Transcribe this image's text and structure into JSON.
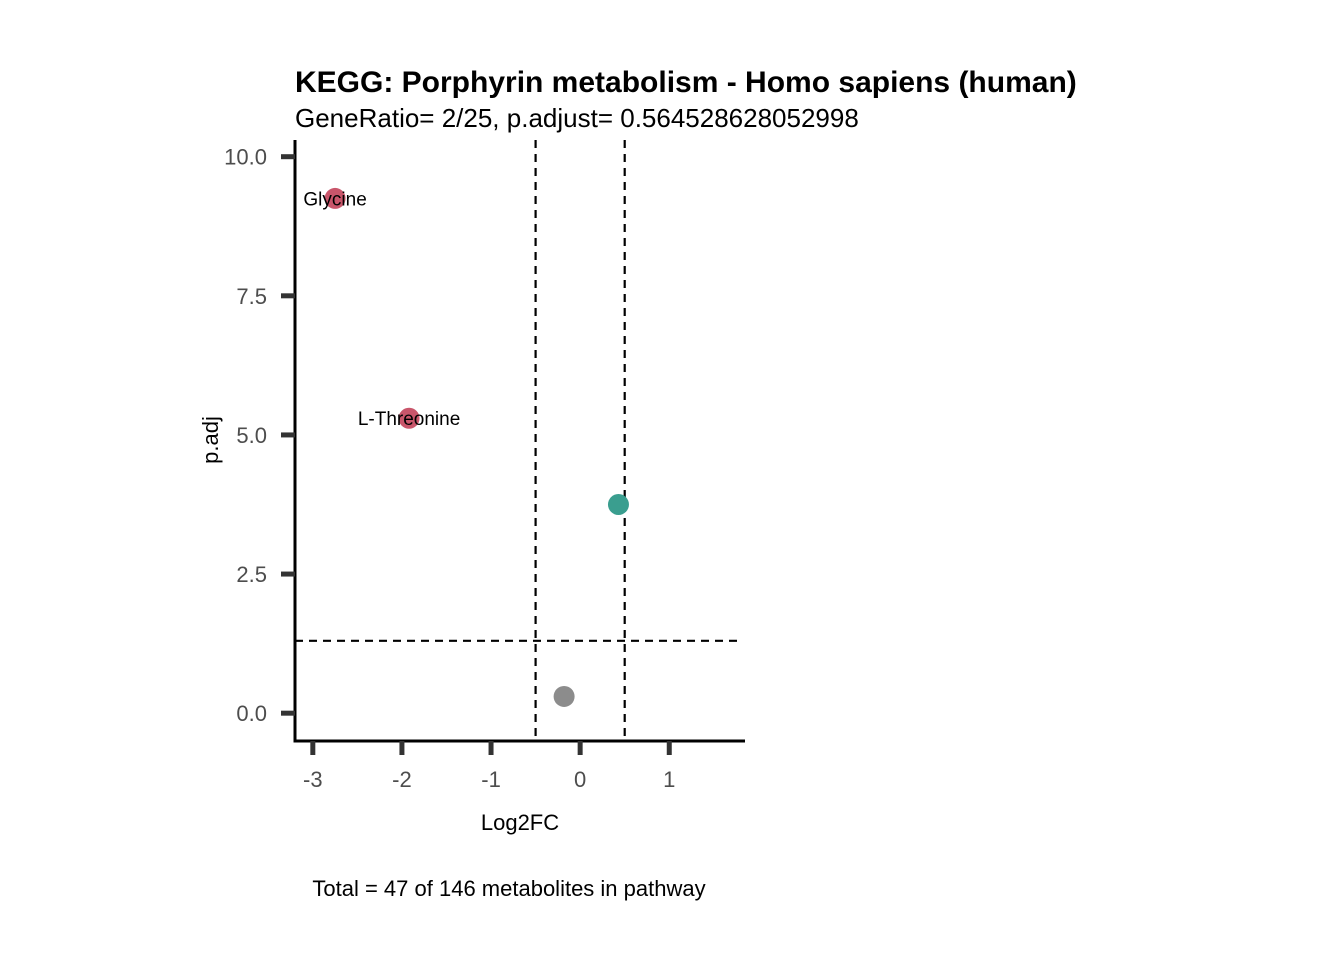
{
  "chart_data": {
    "type": "scatter",
    "title": "KEGG: Porphyrin metabolism - Homo sapiens (human)",
    "subtitle": "GeneRatio= 2/25, p.adjust= 0.564528628052998",
    "xlabel": "Log2FC",
    "ylabel": "p.adj",
    "caption": "Total = 47 of 146 metabolites in pathway",
    "xlim": [
      -3.2,
      1.85
    ],
    "ylim": [
      -0.5,
      10.3
    ],
    "x_ticks": [
      -3,
      -2,
      -1,
      0,
      1
    ],
    "x_tick_labels": [
      "-3",
      "-2",
      "-1",
      "0",
      "1"
    ],
    "y_ticks": [
      0,
      2.5,
      5,
      7.5,
      10
    ],
    "y_tick_labels": [
      "0.0",
      "2.5",
      "5.0",
      "7.5",
      "10.0"
    ],
    "vlines": [
      -0.5,
      0.5
    ],
    "hlines": [
      1.3
    ],
    "grid": false,
    "colors": {
      "down": "#c9566b",
      "up": "#3a9e8f",
      "ns": "#8c8c8c"
    },
    "points": [
      {
        "x": -2.75,
        "y": 9.25,
        "group": "down",
        "label": "Glycine"
      },
      {
        "x": -1.92,
        "y": 5.3,
        "group": "down",
        "label": "L-Threonine"
      },
      {
        "x": 0.43,
        "y": 3.75,
        "group": "up",
        "label": ""
      },
      {
        "x": -0.18,
        "y": 0.3,
        "group": "ns",
        "label": ""
      }
    ]
  }
}
